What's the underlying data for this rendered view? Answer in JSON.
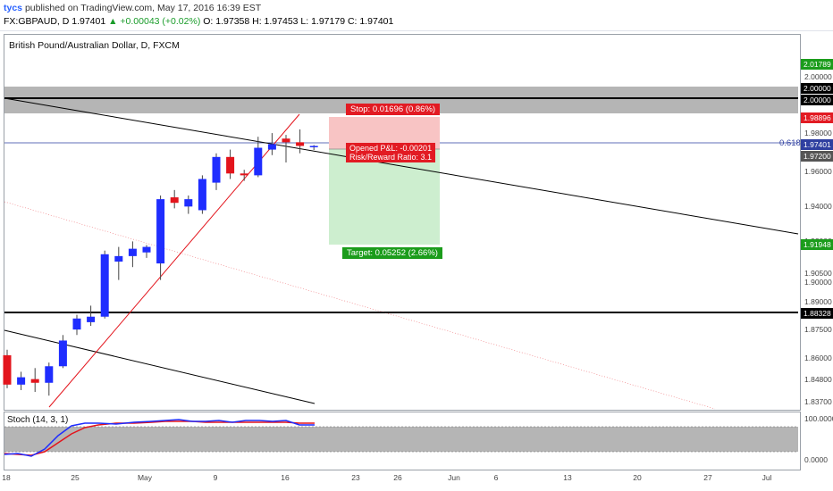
{
  "header": {
    "user": "tycs",
    "published": "published on TradingView.com, May 17, 2016 16:39 EST",
    "ohlc": "FX:GBPAUD, D 1.97401",
    "change": "▲ +0.00043 (+0.02%)",
    "values": "O: 1.97358 H: 1.97453 L: 1.97179 C: 1.97401"
  },
  "chart_title": "British Pound/Australian Dollar, D, FXCM",
  "stoch_title": "Stoch (14, 3, 1)",
  "position": {
    "stop": "Stop: 0.01696 (0.86%)",
    "target": "Target: 0.05252 (2.66%)",
    "pnl": "Opened P&L: -0.00201",
    "rr": "Risk/Reward Ratio: 3.1"
  },
  "fib_label": "0.618",
  "colors": {
    "up": "#1f2dff",
    "down": "#e3141c",
    "stop_zone": "#f8c4c4",
    "target_zone": "#cdeecf"
  },
  "price_axis": {
    "ticks": [
      "2.00000",
      "1.98000",
      "1.96000",
      "1.94000",
      "1.92000",
      "1.90500",
      "1.90000",
      "1.89000",
      "1.87500",
      "1.86000",
      "1.84800",
      "1.83700"
    ],
    "boxes": [
      {
        "text": "2.01789",
        "color": "#1b9c1b"
      },
      {
        "text": "2.00000",
        "color": "#000000"
      },
      {
        "text": "2.00000",
        "color": "#000000"
      },
      {
        "text": "1.98896",
        "color": "#e21b23"
      },
      {
        "text": "1.97401",
        "color": "#2e3fa0"
      },
      {
        "text": "1.97200",
        "color": "#555555"
      },
      {
        "text": "1.91948",
        "color": "#1b9c1b"
      },
      {
        "text": "1.88328",
        "color": "#000000"
      }
    ]
  },
  "stoch_axis": [
    "100.0000",
    "0.0000"
  ],
  "time_axis": [
    "18",
    "25",
    "May",
    "9",
    "16",
    "23",
    "26",
    "Jun",
    "6",
    "13",
    "20",
    "27",
    "Jul"
  ],
  "chart_data": {
    "type": "candlestick",
    "symbol": "FX:GBPAUD",
    "timeframe": "D",
    "candles": [
      {
        "o": 1.86,
        "h": 1.863,
        "l": 1.842,
        "c": 1.844
      },
      {
        "o": 1.844,
        "h": 1.851,
        "l": 1.841,
        "c": 1.848
      },
      {
        "o": 1.847,
        "h": 1.853,
        "l": 1.84,
        "c": 1.845
      },
      {
        "o": 1.845,
        "h": 1.856,
        "l": 1.838,
        "c": 1.854
      },
      {
        "o": 1.854,
        "h": 1.871,
        "l": 1.853,
        "c": 1.868
      },
      {
        "o": 1.874,
        "h": 1.882,
        "l": 1.871,
        "c": 1.88
      },
      {
        "o": 1.878,
        "h": 1.887,
        "l": 1.876,
        "c": 1.881
      },
      {
        "o": 1.881,
        "h": 1.917,
        "l": 1.88,
        "c": 1.915
      },
      {
        "o": 1.911,
        "h": 1.919,
        "l": 1.901,
        "c": 1.914
      },
      {
        "o": 1.914,
        "h": 1.922,
        "l": 1.908,
        "c": 1.918
      },
      {
        "o": 1.916,
        "h": 1.92,
        "l": 1.913,
        "c": 1.919
      },
      {
        "o": 1.91,
        "h": 1.947,
        "l": 1.901,
        "c": 1.945
      },
      {
        "o": 1.946,
        "h": 1.95,
        "l": 1.94,
        "c": 1.943
      },
      {
        "o": 1.941,
        "h": 1.947,
        "l": 1.937,
        "c": 1.945
      },
      {
        "o": 1.939,
        "h": 1.958,
        "l": 1.937,
        "c": 1.956
      },
      {
        "o": 1.954,
        "h": 1.97,
        "l": 1.95,
        "c": 1.968
      },
      {
        "o": 1.968,
        "h": 1.972,
        "l": 1.956,
        "c": 1.959
      },
      {
        "o": 1.959,
        "h": 1.961,
        "l": 1.955,
        "c": 1.958
      },
      {
        "o": 1.958,
        "h": 1.979,
        "l": 1.957,
        "c": 1.973
      },
      {
        "o": 1.972,
        "h": 1.981,
        "l": 1.969,
        "c": 1.975
      },
      {
        "o": 1.978,
        "h": 1.98,
        "l": 1.965,
        "c": 1.976
      },
      {
        "o": 1.976,
        "h": 1.983,
        "l": 1.97,
        "c": 1.974
      },
      {
        "o": 1.9736,
        "h": 1.9745,
        "l": 1.9718,
        "c": 1.974
      }
    ],
    "horizontal_levels": [
      2.0,
      1.8833
    ],
    "resistance_zone": [
      1.989,
      2.004
    ],
    "position": {
      "entry": 1.972,
      "stop": 1.98896,
      "target": 1.91948
    },
    "stochastic": {
      "k_last": 94,
      "d_last": 93,
      "levels": [
        80,
        20
      ],
      "range": [
        0,
        100
      ]
    }
  }
}
